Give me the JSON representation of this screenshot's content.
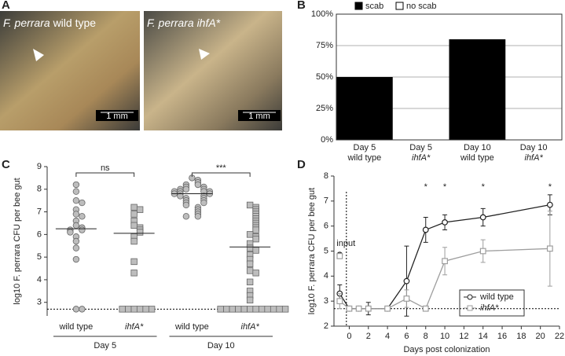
{
  "panel_labels": [
    "A",
    "B",
    "C",
    "D"
  ],
  "photos": {
    "species": [
      "F. perrara",
      "F. perrara"
    ],
    "strains": [
      "wild type",
      "ihfA*"
    ],
    "scale_bars": [
      "1 mm",
      "1 mm"
    ]
  },
  "chart_data": [
    {
      "type": "bar",
      "stacked": true,
      "categories": [
        "Day 5\nwild type",
        "Day 5\nihfA*",
        "Day 10\nwild type",
        "Day 10\nihfA*"
      ],
      "italic_second_line": [
        false,
        true,
        false,
        true
      ],
      "series": [
        {
          "name": "scab",
          "color": "#000000",
          "values": [
            50,
            0,
            80,
            0
          ]
        },
        {
          "name": "no scab",
          "color": "#ffffff",
          "values": [
            50,
            100,
            20,
            100
          ]
        }
      ],
      "ylim": [
        0,
        100
      ],
      "yticks": [
        {
          "value": 0,
          "label": "0%"
        },
        {
          "value": 25,
          "label": "25%"
        },
        {
          "value": 50,
          "label": "50%"
        },
        {
          "value": 75,
          "label": "75%"
        },
        {
          "value": 100,
          "label": "100%"
        }
      ],
      "grid": true,
      "legend": "top"
    },
    {
      "type": "dot",
      "ylabel": "log10 F. perrara CFU per bee gut",
      "categories": [
        "wild type",
        "ihfA*",
        "wild type",
        "ihfA*"
      ],
      "italic": [
        false,
        true,
        false,
        true
      ],
      "groups": [
        "Day 5",
        "Day 10"
      ],
      "markers": [
        "circle",
        "square",
        "circle",
        "square"
      ],
      "color": "#bdbdbd",
      "values": [
        [
          8.2,
          7.9,
          7.5,
          7.4,
          7.1,
          6.9,
          6.8,
          6.6,
          6.4,
          6.3,
          6.2,
          6.2,
          6.1,
          5.9,
          5.7,
          5.4,
          4.9,
          2.7,
          2.7
        ],
        [
          7.2,
          7.1,
          6.9,
          6.6,
          6.4,
          6.3,
          6.2,
          6.1,
          5.9,
          5.7,
          4.8,
          4.3,
          2.7,
          2.7,
          2.7,
          2.7,
          2.7,
          2.7
        ],
        [
          8.5,
          8.4,
          8.3,
          8.2,
          8.2,
          8.1,
          8.1,
          8.0,
          8.0,
          8.0,
          7.9,
          7.9,
          7.9,
          7.9,
          7.8,
          7.8,
          7.8,
          7.7,
          7.7,
          7.6,
          7.6,
          7.5,
          7.5,
          7.4,
          7.4,
          7.3,
          7.2,
          7.1,
          7.0,
          6.9,
          6.8,
          6.8
        ],
        [
          7.3,
          7.2,
          7.1,
          7.0,
          6.9,
          6.8,
          6.7,
          6.6,
          6.5,
          6.4,
          6.3,
          6.2,
          6.0,
          5.9,
          5.8,
          5.6,
          5.4,
          5.3,
          5.1,
          4.9,
          4.7,
          4.4,
          4.3,
          3.9,
          3.5,
          3.3,
          3.1,
          2.7,
          2.7,
          2.7,
          2.7,
          2.7,
          2.7,
          2.7,
          2.7,
          2.7,
          2.7,
          2.7,
          2.7
        ]
      ],
      "medians": [
        6.25,
        6.05,
        7.8,
        5.45
      ],
      "annotations": [
        "ns",
        "***"
      ],
      "detection_limit": 2.7,
      "ylim": [
        2.4,
        9
      ],
      "yticks": [
        3,
        4,
        5,
        6,
        7,
        8,
        9
      ]
    },
    {
      "type": "line",
      "xlabel": "Days post colonization",
      "ylabel": "log10 F. perrara CFU per bee gut",
      "x": [
        -1,
        0,
        1,
        2,
        4,
        6,
        8,
        10,
        14,
        21
      ],
      "series": [
        {
          "name": "wild type",
          "color": "#222222",
          "marker": "circle",
          "values": [
            3.3,
            2.7,
            2.7,
            2.7,
            2.7,
            3.8,
            5.85,
            6.15,
            6.35,
            6.85
          ],
          "errors": [
            0.35,
            0,
            0,
            0.25,
            0,
            1.4,
            0.5,
            0.3,
            0.35,
            0.4
          ]
        },
        {
          "name": "ihfA*",
          "color": "#9e9e9e",
          "marker": "square",
          "values": [
            3.0,
            2.7,
            2.7,
            2.7,
            2.7,
            3.1,
            2.7,
            4.6,
            5.0,
            5.1
          ],
          "errors": [
            0.3,
            0,
            0,
            0,
            0,
            0.35,
            0,
            0.55,
            0.45,
            1.5
          ]
        }
      ],
      "input": {
        "label": "input",
        "x": -1,
        "values": [
          4.85,
          4.8
        ]
      },
      "significance": {
        "x": [
          8,
          10,
          14,
          21
        ],
        "labels": [
          "*",
          "*",
          "*",
          "*"
        ]
      },
      "detection_limit": 2.7,
      "divider_x": -0.3,
      "xlim": [
        -1.6,
        22
      ],
      "xticks": [
        0,
        2,
        4,
        6,
        8,
        10,
        12,
        14,
        16,
        18,
        20,
        22
      ],
      "ylim": [
        2,
        8
      ],
      "yticks": [
        2,
        3,
        4,
        5,
        6,
        7,
        8
      ],
      "legend": "lower right"
    }
  ]
}
